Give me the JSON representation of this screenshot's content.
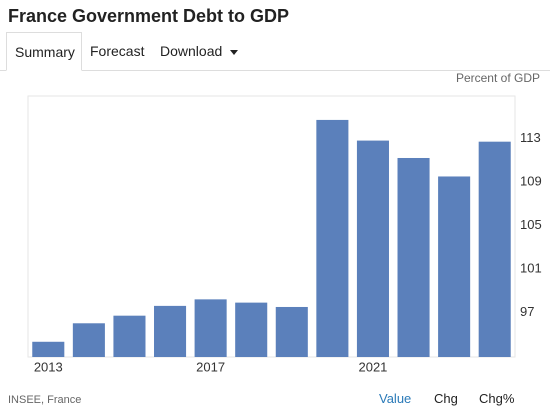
{
  "header": {
    "title": "France Government Debt to GDP"
  },
  "tabs": [
    "Summary",
    "Forecast",
    "Download"
  ],
  "chart_data": {
    "type": "bar",
    "ylabel": "Percent of GDP",
    "categories": [
      "2013",
      null,
      null,
      null,
      "2017",
      null,
      null,
      null,
      "2021",
      null,
      null,
      null
    ],
    "values": [
      94.3,
      96.0,
      96.7,
      97.6,
      98.2,
      97.9,
      97.5,
      114.7,
      112.8,
      111.2,
      109.5,
      112.7
    ],
    "color": "#5b80bb",
    "ylim": [
      92.9,
      116.9
    ],
    "yticks": [
      97,
      101,
      105,
      109,
      113
    ],
    "y_axis_side": "right",
    "grid": false
  },
  "footer": {
    "source": "INSEE, France",
    "buttons": [
      "Value",
      "Chg",
      "Chg%"
    ]
  }
}
